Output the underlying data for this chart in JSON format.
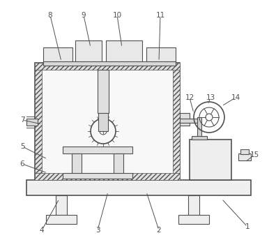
{
  "bg_color": "#ffffff",
  "line_color": "#505050",
  "figsize": [
    3.96,
    3.44
  ],
  "dpi": 100,
  "labels_data": [
    [
      "1",
      355,
      325,
      318,
      285
    ],
    [
      "2",
      228,
      330,
      210,
      275
    ],
    [
      "3",
      140,
      330,
      155,
      275
    ],
    [
      "4",
      60,
      330,
      85,
      285
    ],
    [
      "5",
      32,
      210,
      68,
      228
    ],
    [
      "6",
      32,
      235,
      68,
      248
    ],
    [
      "7",
      32,
      172,
      60,
      178
    ],
    [
      "8",
      72,
      22,
      88,
      88
    ],
    [
      "9",
      120,
      22,
      130,
      68
    ],
    [
      "10",
      168,
      22,
      175,
      68
    ],
    [
      "11",
      230,
      22,
      228,
      88
    ],
    [
      "12",
      272,
      140,
      278,
      162
    ],
    [
      "13",
      302,
      140,
      298,
      150
    ],
    [
      "14",
      338,
      140,
      318,
      152
    ],
    [
      "15",
      365,
      222,
      352,
      232
    ]
  ]
}
